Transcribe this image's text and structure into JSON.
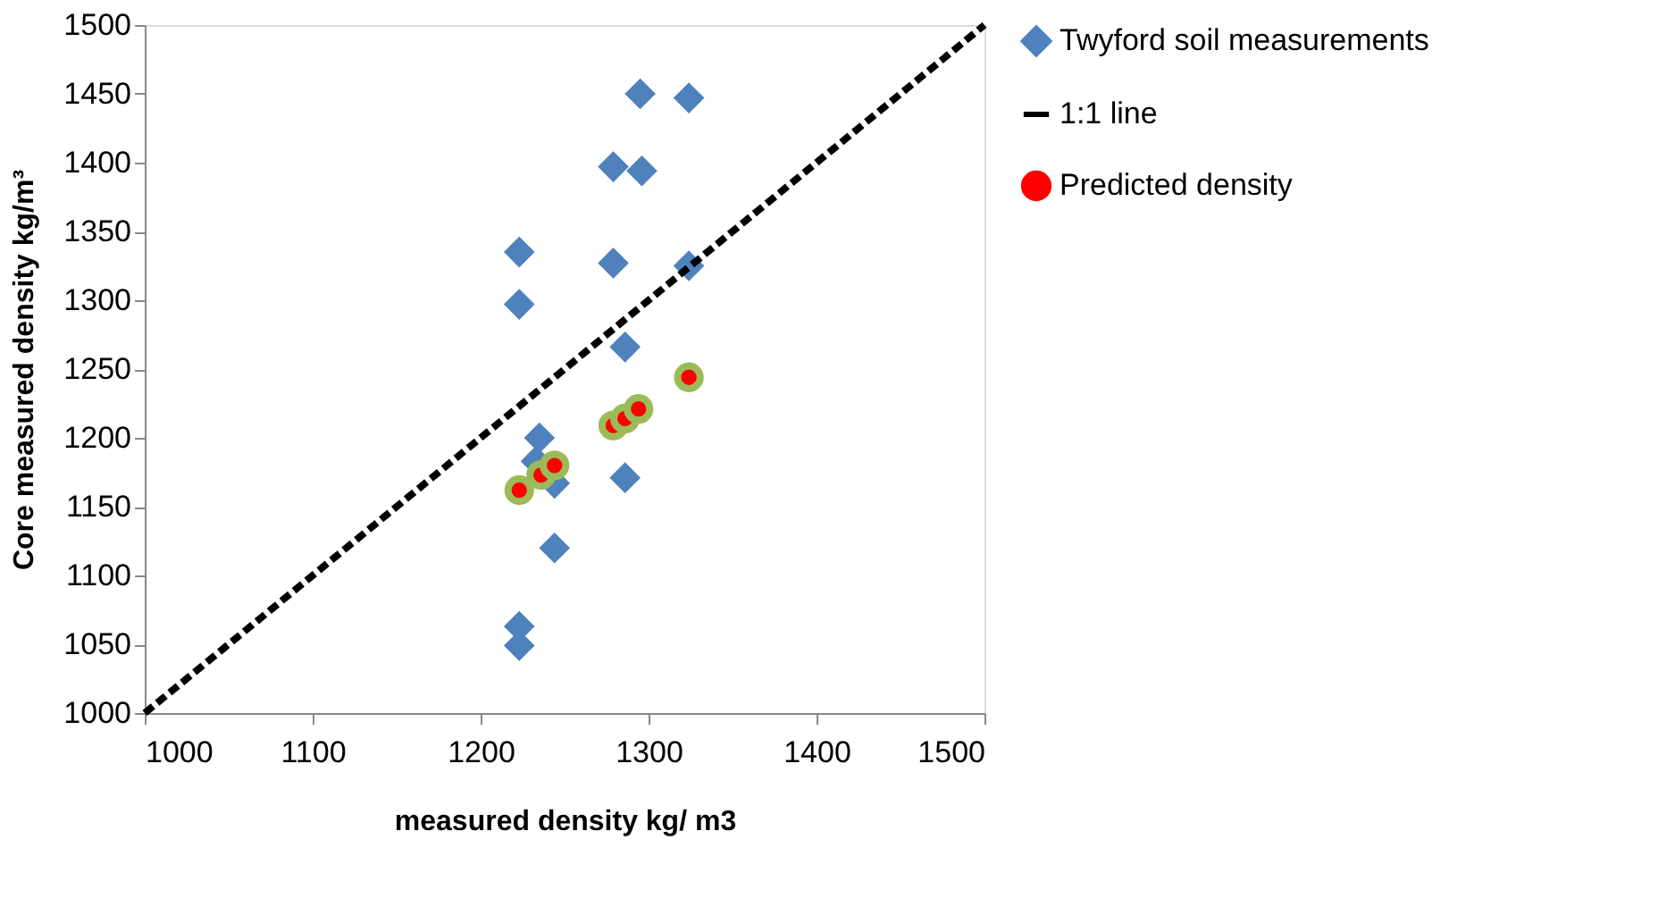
{
  "chart_data": {
    "type": "scatter",
    "xlabel": "measured density kg/ m3",
    "ylabel": "Core measured density kg/m³",
    "xlim": [
      1000,
      1500
    ],
    "ylim": [
      1000,
      1500
    ],
    "xticks": [
      1000,
      1100,
      1200,
      1300,
      1400,
      1500
    ],
    "yticks": [
      1000,
      1050,
      1100,
      1150,
      1200,
      1250,
      1300,
      1350,
      1400,
      1450,
      1500
    ],
    "grid": false,
    "legend": "right",
    "series": [
      {
        "name": "Twyford soil measurements",
        "type": "scatter",
        "marker": "diamond",
        "color": "#4f81bd",
        "x": [
          1295,
          1324,
          1279,
          1296,
          1223,
          1279,
          1324,
          1223,
          1286,
          1235,
          1233,
          1244,
          1286,
          1244,
          1223,
          1223
        ],
        "values": [
          1450,
          1447,
          1397,
          1394,
          1335,
          1327,
          1325,
          1297,
          1266,
          1200,
          1183,
          1167,
          1171,
          1120,
          1063,
          1049
        ]
      },
      {
        "name": "1:1 line",
        "type": "line",
        "marker": "none",
        "line_style": "dashed",
        "color": "#000000",
        "x": [
          1000,
          1500
        ],
        "values": [
          1000,
          1500
        ]
      },
      {
        "name": "Predicted density",
        "type": "scatter",
        "marker": "circle",
        "color": "#ff0000",
        "x": [
          1223,
          1236,
          1244,
          1279,
          1286,
          1294,
          1324
        ],
        "values": [
          1162,
          1173,
          1180,
          1209,
          1214,
          1221,
          1244
        ]
      }
    ]
  }
}
